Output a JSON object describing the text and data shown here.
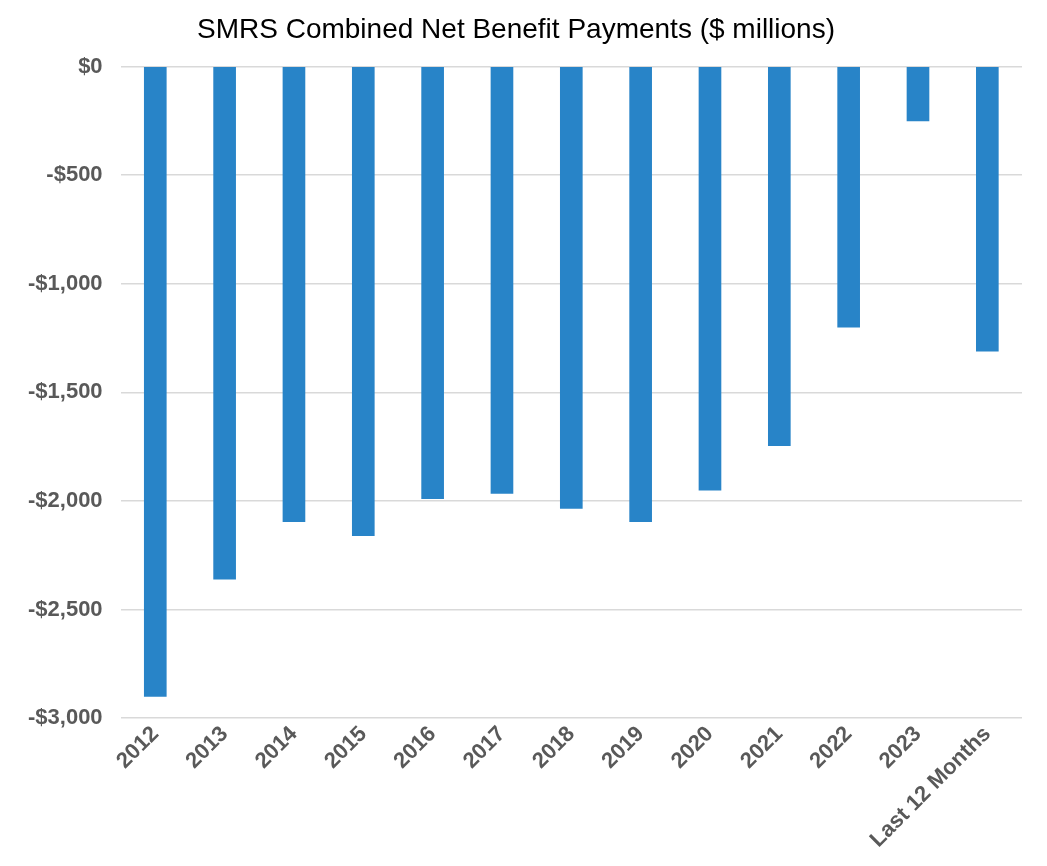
{
  "chart_data": {
    "type": "bar",
    "title": "SMRS Combined Net Benefit Payments ($ millions)",
    "categories": [
      "2012",
      "2013",
      "2014",
      "2015",
      "2016",
      "2017",
      "2018",
      "2019",
      "2020",
      "2021",
      "2022",
      "2023",
      "Last 12 Months"
    ],
    "values": [
      -2900,
      -2360,
      -2095,
      -2160,
      -1990,
      -1965,
      -2035,
      -2095,
      -1950,
      -1745,
      -1200,
      -250,
      -1310
    ],
    "color": "#2884c8",
    "ylim": [
      -3000,
      0
    ],
    "yticks": [
      {
        "value": 0,
        "label": "$0"
      },
      {
        "value": -500,
        "label": "-$500"
      },
      {
        "value": -1000,
        "label": "-$1,000"
      },
      {
        "value": -1500,
        "label": "-$1,500"
      },
      {
        "value": -2000,
        "label": "-$2,000"
      },
      {
        "value": -2500,
        "label": "-$2,500"
      },
      {
        "value": -3000,
        "label": "-$3,000"
      }
    ],
    "grid": "y"
  }
}
